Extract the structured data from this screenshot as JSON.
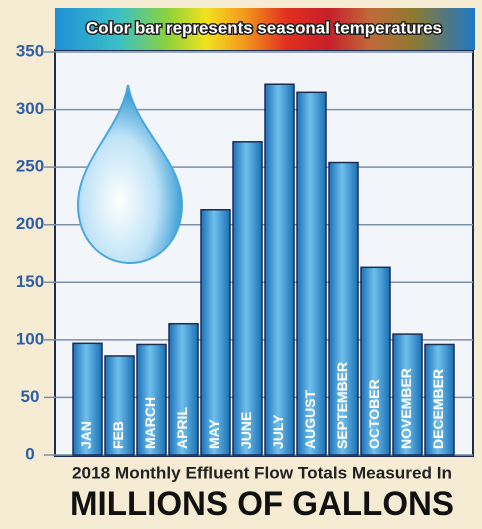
{
  "chart_data": {
    "type": "bar",
    "annotation": "Color bar represents seasonal temperatures",
    "subtitle": "2018 Monthly Effluent Flow Totals Measured In",
    "title": "MILLIONS OF GALLONS",
    "categories": [
      "JAN",
      "FEB",
      "MARCH",
      "APRIL",
      "MAY",
      "JUNE",
      "JULY",
      "AUGUST",
      "SEPTEMBER",
      "OCTOBER",
      "NOVEMBER",
      "DECEMBER"
    ],
    "values": [
      97,
      86,
      96,
      114,
      213,
      272,
      322,
      315,
      254,
      163,
      105,
      96
    ],
    "color": "#3a9ad9",
    "ylim": [
      0,
      350
    ],
    "yticks": [
      0,
      50,
      100,
      150,
      200,
      250,
      300,
      350
    ],
    "grid": true
  }
}
